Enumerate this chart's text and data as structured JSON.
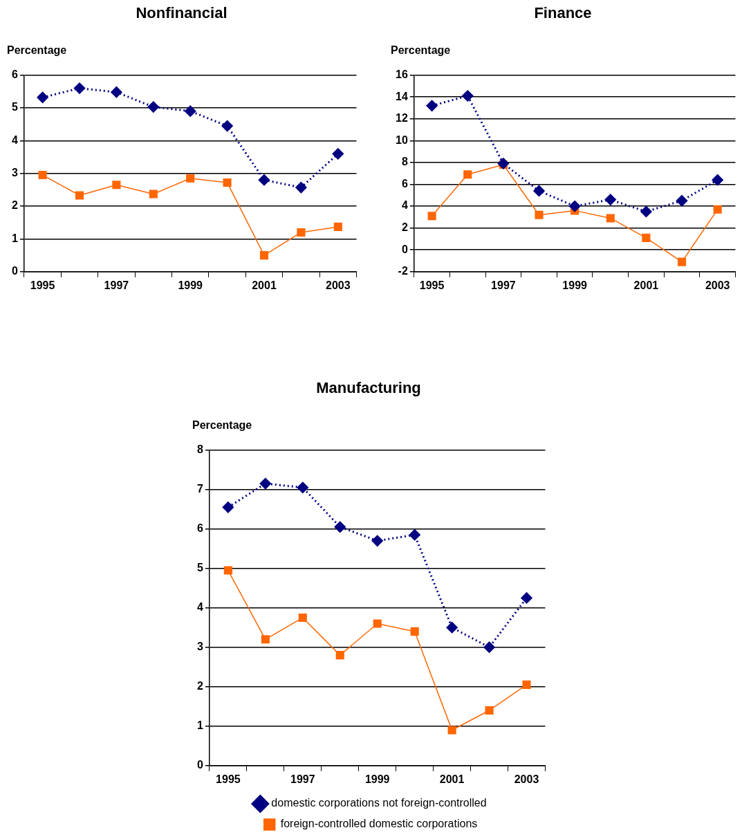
{
  "chart_data": [
    {
      "type": "line",
      "title": "Nonfinancial",
      "ylabel": "Percentage",
      "categories": [
        "1995",
        null,
        "1997",
        null,
        "1999",
        null,
        "2001",
        null,
        "2003"
      ],
      "ylim": [
        0,
        6
      ],
      "yticks": [
        0,
        1,
        2,
        3,
        4,
        5,
        6
      ],
      "grid": "y",
      "legend": false,
      "series": [
        {
          "color": "#000080",
          "marker": "diamond",
          "line_style": "dotted",
          "values": [
            5.32,
            5.6,
            5.48,
            5.03,
            4.9,
            4.45,
            2.8,
            2.57,
            3.6
          ]
        },
        {
          "color": "#ff6600",
          "marker": "square",
          "line_style": "solid",
          "values": [
            2.95,
            2.33,
            2.65,
            2.37,
            2.85,
            2.72,
            0.5,
            1.2,
            1.37
          ]
        }
      ]
    },
    {
      "type": "line",
      "title": "Finance",
      "ylabel": "Percentage",
      "categories": [
        "1995",
        null,
        "1997",
        null,
        "1999",
        null,
        "2001",
        null,
        "2003"
      ],
      "ylim": [
        -2,
        16
      ],
      "yticks": [
        -2,
        0,
        2,
        4,
        6,
        8,
        10,
        12,
        14,
        16
      ],
      "grid": "y",
      "legend": false,
      "series": [
        {
          "color": "#000080",
          "marker": "diamond",
          "line_style": "dotted",
          "values": [
            13.2,
            14.1,
            7.9,
            5.4,
            4.0,
            4.6,
            3.5,
            4.5,
            6.4
          ]
        },
        {
          "color": "#ff6600",
          "marker": "square",
          "line_style": "solid",
          "values": [
            3.1,
            6.9,
            7.8,
            3.2,
            3.6,
            2.9,
            1.1,
            -1.1,
            3.7
          ]
        }
      ]
    },
    {
      "type": "line",
      "title": "Manufacturing",
      "ylabel": "Percentage",
      "categories": [
        "1995",
        null,
        "1997",
        null,
        "1999",
        null,
        "2001",
        null,
        "2003"
      ],
      "ylim": [
        0,
        8
      ],
      "yticks": [
        0,
        1,
        2,
        3,
        4,
        5,
        6,
        7,
        8
      ],
      "grid": "y",
      "legend": "bottom",
      "series": [
        {
          "name": "domestic corporations not foreign-controlled",
          "color": "#000080",
          "marker": "diamond",
          "line_style": "dotted",
          "values": [
            6.55,
            7.15,
            7.05,
            6.05,
            5.7,
            5.85,
            3.5,
            3.0,
            4.25
          ]
        },
        {
          "name": "foreign-controlled domestic corporations",
          "color": "#ff6600",
          "marker": "square",
          "line_style": "solid",
          "values": [
            4.95,
            3.2,
            3.75,
            2.8,
            3.6,
            3.4,
            0.9,
            1.4,
            2.05
          ]
        }
      ]
    }
  ]
}
